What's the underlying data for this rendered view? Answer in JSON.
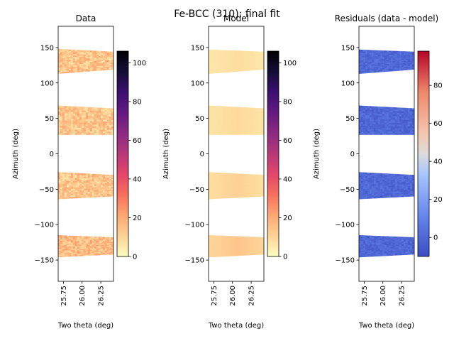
{
  "suptitle": "Fe-BCC (310): final fit",
  "chart_data": [
    {
      "type": "heatmap",
      "title": "Data",
      "xlabel": "Two theta (deg)",
      "ylabel": "Azimuth (deg)",
      "xlim": [
        25.68,
        26.42
      ],
      "ylim": [
        -180,
        180
      ],
      "xticks": [
        25.75,
        26.0,
        26.25
      ],
      "xtick_labels": [
        "25.75",
        "26.00",
        "26.25"
      ],
      "yticks": [
        150,
        100,
        50,
        0,
        -50,
        -100,
        -150
      ],
      "ytick_labels": [
        "150",
        "100",
        "50",
        "0",
        "−50",
        "−100",
        "−150"
      ],
      "colorbar": {
        "cmap": "magma_r",
        "range": [
          0,
          106
        ],
        "ticks": [
          0,
          20,
          40,
          60,
          80,
          100
        ],
        "tick_labels": [
          "0",
          "20",
          "40",
          "60",
          "80",
          "100"
        ]
      },
      "bands": [
        {
          "x_range": [
            25.68,
            26.42
          ],
          "azimuth_left": [
            113,
            148
          ],
          "azimuth_right": [
            119,
            144
          ],
          "value": 14,
          "noise": 8
        },
        {
          "x_range": [
            25.68,
            26.42
          ],
          "azimuth_left": [
            27,
            68
          ],
          "azimuth_right": [
            27,
            64
          ],
          "value": 14,
          "noise": 8
        },
        {
          "x_range": [
            25.68,
            26.42
          ],
          "azimuth_left": [
            -64,
            -26
          ],
          "azimuth_right": [
            -60,
            -30
          ],
          "value": 14,
          "noise": 8
        },
        {
          "x_range": [
            25.68,
            26.42
          ],
          "azimuth_left": [
            -146,
            -115
          ],
          "azimuth_right": [
            -142,
            -118
          ],
          "value": 16,
          "noise": 8
        }
      ]
    },
    {
      "type": "heatmap",
      "title": "Model",
      "xlabel": "Two theta (deg)",
      "ylabel": "Azimuth (deg)",
      "xlim": [
        25.68,
        26.42
      ],
      "ylim": [
        -180,
        180
      ],
      "xticks": [
        25.75,
        26.0,
        26.25
      ],
      "xtick_labels": [
        "25.75",
        "26.00",
        "26.25"
      ],
      "yticks": [
        150,
        100,
        50,
        0,
        -50,
        -100,
        -150
      ],
      "ytick_labels": [
        "150",
        "100",
        "50",
        "0",
        "−50",
        "−100",
        "−150"
      ],
      "colorbar": {
        "cmap": "magma_r",
        "range": [
          0,
          106
        ],
        "ticks": [
          0,
          20,
          40,
          60,
          80,
          100
        ],
        "tick_labels": [
          "0",
          "20",
          "40",
          "60",
          "80",
          "100"
        ]
      },
      "bands": [
        {
          "x_range": [
            25.68,
            26.42
          ],
          "azimuth_left": [
            113,
            147
          ],
          "azimuth_right": [
            119,
            144
          ],
          "value": 8,
          "noise": 0
        },
        {
          "x_range": [
            25.68,
            26.42
          ],
          "azimuth_left": [
            27,
            68
          ],
          "azimuth_right": [
            27,
            64
          ],
          "value": 9,
          "noise": 0
        },
        {
          "x_range": [
            25.68,
            26.42
          ],
          "azimuth_left": [
            -64,
            -26
          ],
          "azimuth_right": [
            -60,
            -30
          ],
          "value": 11,
          "noise": 0
        },
        {
          "x_range": [
            25.68,
            26.42
          ],
          "azimuth_left": [
            -146,
            -115
          ],
          "azimuth_right": [
            -142,
            -118
          ],
          "value": 14,
          "noise": 0
        }
      ]
    },
    {
      "type": "heatmap",
      "title": "Residuals (data - model)",
      "xlabel": "Two theta (deg)",
      "ylabel": "Azimuth (deg)",
      "xlim": [
        25.68,
        26.42
      ],
      "ylim": [
        -180,
        180
      ],
      "xticks": [
        25.75,
        26.0,
        26.25
      ],
      "xtick_labels": [
        "25.75",
        "26.00",
        "26.25"
      ],
      "yticks": [
        150,
        100,
        50,
        0,
        -50,
        -100,
        -150
      ],
      "ytick_labels": [
        "150",
        "100",
        "50",
        "0",
        "−50",
        "−100",
        "−150"
      ],
      "colorbar": {
        "cmap": "coolwarm",
        "range": [
          -10,
          98
        ],
        "ticks": [
          0,
          20,
          40,
          60,
          80
        ],
        "tick_labels": [
          "0",
          "20",
          "40",
          "60",
          "80"
        ]
      },
      "bands": [
        {
          "x_range": [
            25.68,
            26.42
          ],
          "azimuth_left": [
            113,
            147
          ],
          "azimuth_right": [
            119,
            144
          ],
          "value": 0,
          "noise": 5
        },
        {
          "x_range": [
            25.68,
            26.42
          ],
          "azimuth_left": [
            27,
            68
          ],
          "azimuth_right": [
            27,
            64
          ],
          "value": 0,
          "noise": 5
        },
        {
          "x_range": [
            25.68,
            26.42
          ],
          "azimuth_left": [
            -64,
            -26
          ],
          "azimuth_right": [
            -60,
            -30
          ],
          "value": 0,
          "noise": 5
        },
        {
          "x_range": [
            25.68,
            26.42
          ],
          "azimuth_left": [
            -146,
            -115
          ],
          "azimuth_right": [
            -142,
            -118
          ],
          "value": 0,
          "noise": 5
        }
      ]
    }
  ]
}
